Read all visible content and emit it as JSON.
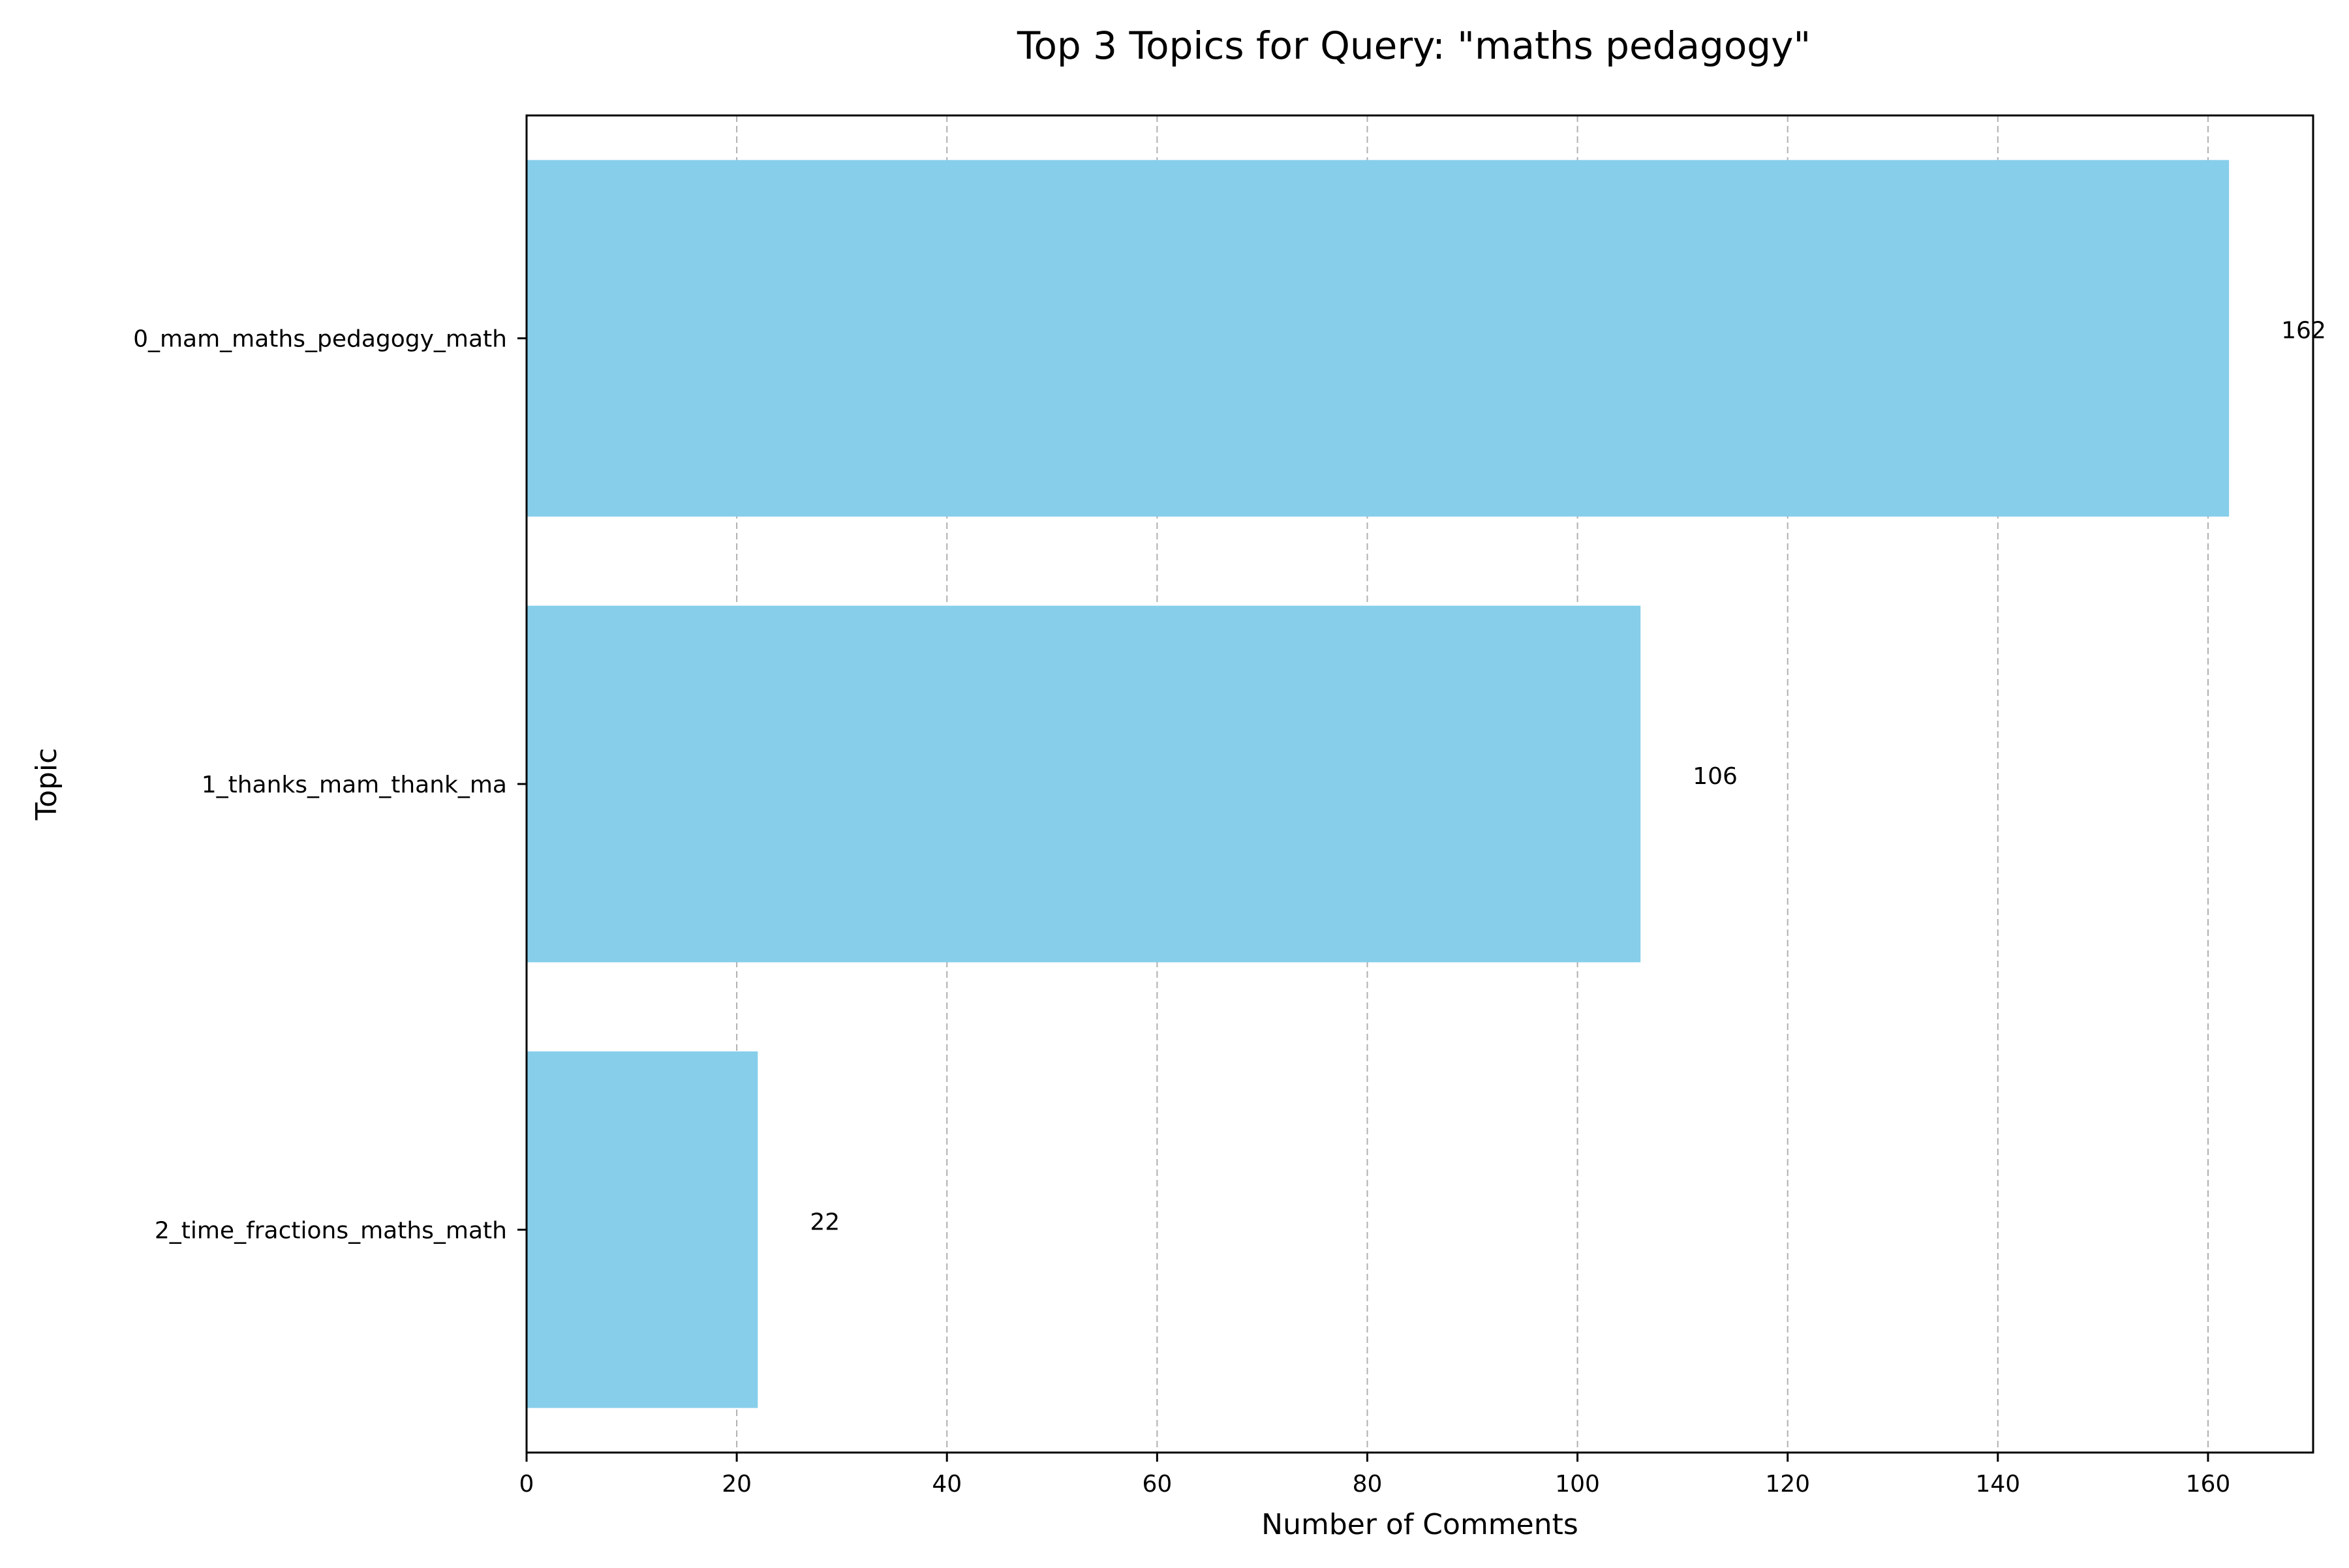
{
  "chart_data": {
    "type": "bar",
    "orientation": "horizontal",
    "title": "Top 3 Topics for Query: \"maths pedagogy\"",
    "xlabel": "Number of Comments",
    "ylabel": "Topic",
    "categories": [
      "0_mam_maths_pedagogy_math",
      "1_thanks_mam_thank_ma",
      "2_time_fractions_maths_math"
    ],
    "values": [
      162,
      106,
      22
    ],
    "data_labels": [
      "162",
      "106",
      "22"
    ],
    "xlim": [
      0,
      170
    ],
    "xticks": [
      0,
      20,
      40,
      60,
      80,
      100,
      120,
      140,
      160
    ],
    "xtick_labels": [
      "0",
      "20",
      "40",
      "60",
      "80",
      "100",
      "120",
      "140",
      "160"
    ],
    "grid": "x-axis dashed",
    "legend": "none",
    "bar_color": "#87CEEB",
    "grid_color": "#b0b0b0"
  }
}
